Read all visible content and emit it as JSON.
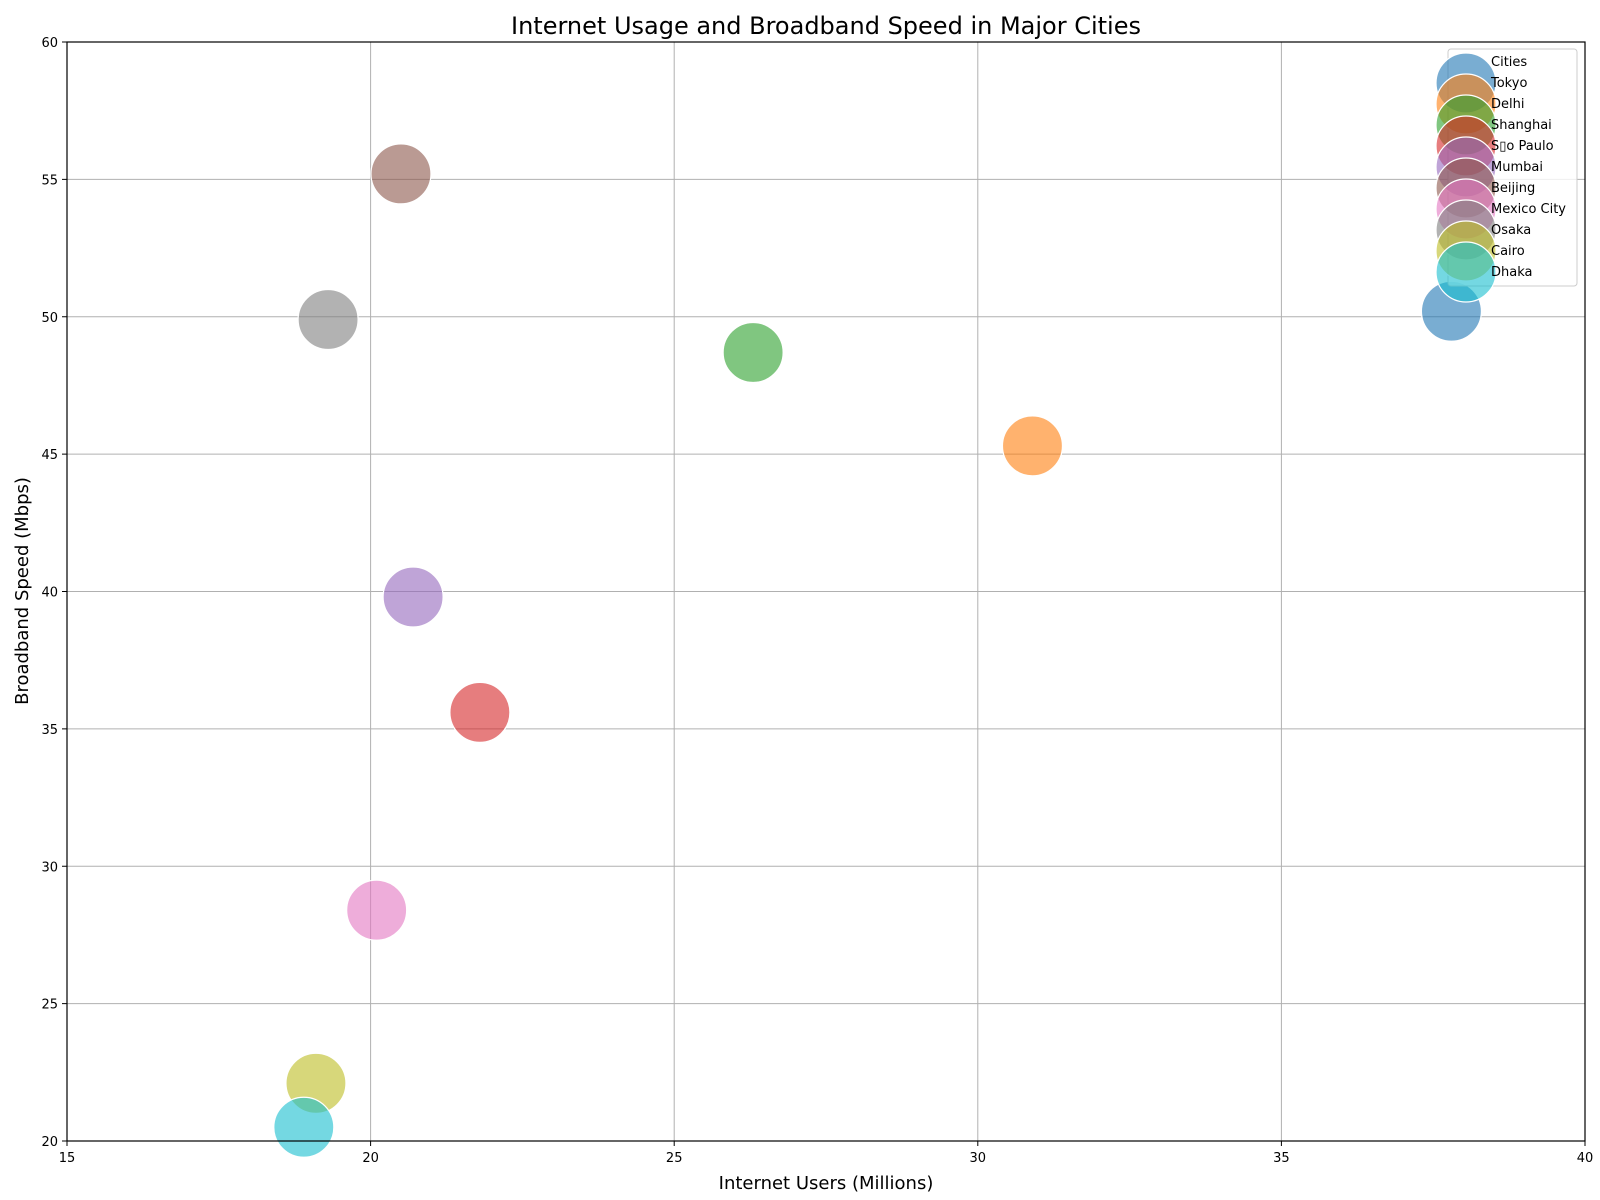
{
  "chart_data": {
    "type": "scatter",
    "title": "Internet Usage and Broadband Speed in Major Cities",
    "xlabel": "Internet Users (Millions)",
    "ylabel": "Broadband Speed (Mbps)",
    "xlim": [
      15,
      40
    ],
    "ylim": [
      20,
      60
    ],
    "xticks": [
      15,
      20,
      25,
      30,
      35,
      40
    ],
    "yticks": [
      20,
      25,
      30,
      35,
      40,
      45,
      50,
      55,
      60
    ],
    "grid": true,
    "legend": {
      "title": "Cities",
      "placement": "top-right"
    },
    "series": [
      {
        "name": "Tokyo",
        "x": 37.8,
        "y": 50.2,
        "color": "#1f77b4"
      },
      {
        "name": "Delhi",
        "x": 30.9,
        "y": 45.3,
        "color": "#ff7f0e"
      },
      {
        "name": "Shanghai",
        "x": 26.3,
        "y": 48.7,
        "color": "#2ca02c"
      },
      {
        "name": "S▯o Paulo",
        "x": 21.8,
        "y": 35.6,
        "color": "#d62728"
      },
      {
        "name": "Mumbai",
        "x": 20.7,
        "y": 39.8,
        "color": "#9467bd"
      },
      {
        "name": "Beijing",
        "x": 20.5,
        "y": 55.2,
        "color": "#8c564b"
      },
      {
        "name": "Mexico City",
        "x": 20.1,
        "y": 28.4,
        "color": "#e377c2"
      },
      {
        "name": "Osaka",
        "x": 19.3,
        "y": 49.9,
        "color": "#7f7f7f"
      },
      {
        "name": "Cairo",
        "x": 19.1,
        "y": 22.1,
        "color": "#bcbd22"
      },
      {
        "name": "Dhaka",
        "x": 18.9,
        "y": 20.5,
        "color": "#17becf"
      }
    ]
  }
}
